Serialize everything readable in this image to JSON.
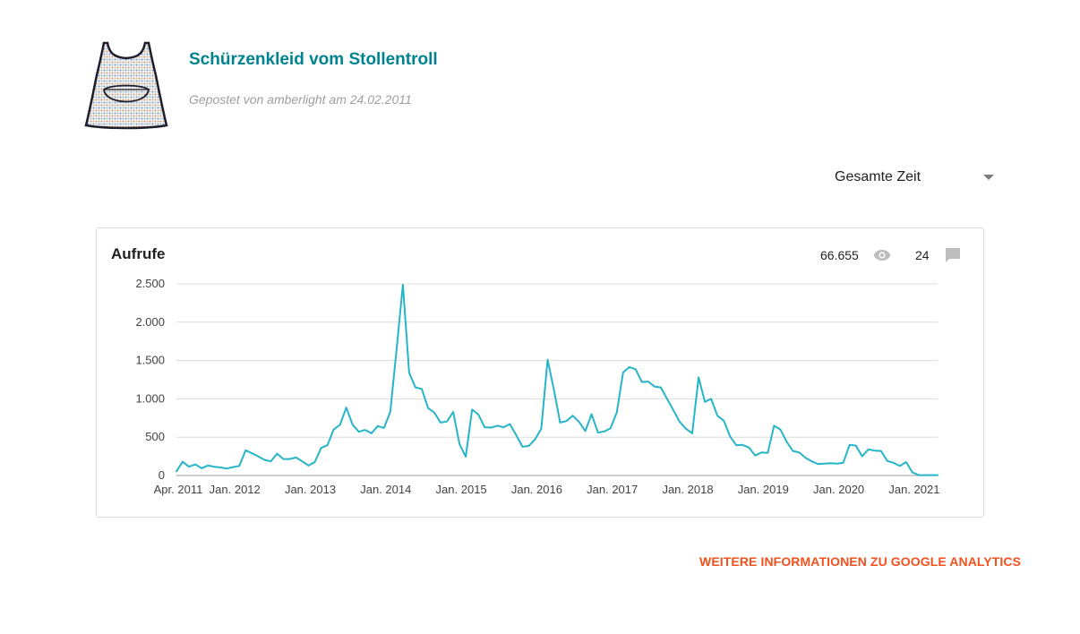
{
  "post": {
    "title": "Schürzenkleid vom Stollentroll",
    "meta": "Gepostet von amberlight am 24.02.2011",
    "thumbnail_icon": "apron-dress-thumbnail"
  },
  "range_select": {
    "selected": "Gesamte Zeit",
    "icon": "dropdown-caret-icon"
  },
  "card": {
    "title": "Aufrufe",
    "views_total": "66.655",
    "views_icon": "eye-icon",
    "comments_total": "24",
    "comments_icon": "comment-icon"
  },
  "chart_data": {
    "type": "line",
    "color": "#26b5c8",
    "ylim": [
      0,
      2500
    ],
    "yticks": [
      {
        "value": 2500,
        "label": "2.500"
      },
      {
        "value": 2000,
        "label": "2.000"
      },
      {
        "value": 1500,
        "label": "1.500"
      },
      {
        "value": 1000,
        "label": "1.000"
      },
      {
        "value": 500,
        "label": "500"
      },
      {
        "value": 0,
        "label": "0"
      }
    ],
    "xticks": [
      {
        "date": "2011-04",
        "label": "Apr. 2011"
      },
      {
        "date": "2012-01",
        "label": "Jan. 2012"
      },
      {
        "date": "2013-01",
        "label": "Jan. 2013"
      },
      {
        "date": "2014-01",
        "label": "Jan. 2014"
      },
      {
        "date": "2015-01",
        "label": "Jan. 2015"
      },
      {
        "date": "2016-01",
        "label": "Jan. 2016"
      },
      {
        "date": "2017-01",
        "label": "Jan. 2017"
      },
      {
        "date": "2018-01",
        "label": "Jan. 2018"
      },
      {
        "date": "2019-01",
        "label": "Jan. 2019"
      },
      {
        "date": "2020-01",
        "label": "Jan. 2020"
      },
      {
        "date": "2021-01",
        "label": "Jan. 2021"
      }
    ],
    "grid": true,
    "legend": "none",
    "points": [
      [
        "2011-04",
        55
      ],
      [
        "2011-05",
        180
      ],
      [
        "2011-06",
        115
      ],
      [
        "2011-07",
        145
      ],
      [
        "2011-08",
        95
      ],
      [
        "2011-09",
        130
      ],
      [
        "2011-10",
        115
      ],
      [
        "2011-11",
        105
      ],
      [
        "2011-12",
        90
      ],
      [
        "2012-01",
        110
      ],
      [
        "2012-02",
        125
      ],
      [
        "2012-03",
        330
      ],
      [
        "2012-04",
        290
      ],
      [
        "2012-05",
        250
      ],
      [
        "2012-06",
        205
      ],
      [
        "2012-07",
        185
      ],
      [
        "2012-08",
        285
      ],
      [
        "2012-09",
        215
      ],
      [
        "2012-10",
        215
      ],
      [
        "2012-11",
        235
      ],
      [
        "2012-12",
        185
      ],
      [
        "2013-01",
        130
      ],
      [
        "2013-02",
        175
      ],
      [
        "2013-03",
        360
      ],
      [
        "2013-04",
        395
      ],
      [
        "2013-05",
        600
      ],
      [
        "2013-06",
        660
      ],
      [
        "2013-07",
        885
      ],
      [
        "2013-08",
        665
      ],
      [
        "2013-09",
        570
      ],
      [
        "2013-10",
        595
      ],
      [
        "2013-11",
        550
      ],
      [
        "2013-12",
        645
      ],
      [
        "2014-01",
        620
      ],
      [
        "2014-02",
        830
      ],
      [
        "2014-03",
        1650
      ],
      [
        "2014-04",
        2490
      ],
      [
        "2014-05",
        1340
      ],
      [
        "2014-06",
        1150
      ],
      [
        "2014-07",
        1130
      ],
      [
        "2014-08",
        880
      ],
      [
        "2014-09",
        820
      ],
      [
        "2014-10",
        690
      ],
      [
        "2014-11",
        705
      ],
      [
        "2014-12",
        830
      ],
      [
        "2015-01",
        410
      ],
      [
        "2015-02",
        245
      ],
      [
        "2015-03",
        860
      ],
      [
        "2015-04",
        795
      ],
      [
        "2015-05",
        630
      ],
      [
        "2015-06",
        625
      ],
      [
        "2015-07",
        650
      ],
      [
        "2015-08",
        630
      ],
      [
        "2015-09",
        670
      ],
      [
        "2015-10",
        530
      ],
      [
        "2015-11",
        375
      ],
      [
        "2015-12",
        385
      ],
      [
        "2016-01",
        470
      ],
      [
        "2016-02",
        610
      ],
      [
        "2016-03",
        1510
      ],
      [
        "2016-04",
        1120
      ],
      [
        "2016-05",
        690
      ],
      [
        "2016-06",
        710
      ],
      [
        "2016-07",
        780
      ],
      [
        "2016-08",
        700
      ],
      [
        "2016-09",
        580
      ],
      [
        "2016-10",
        800
      ],
      [
        "2016-11",
        560
      ],
      [
        "2016-12",
        575
      ],
      [
        "2017-01",
        615
      ],
      [
        "2017-02",
        820
      ],
      [
        "2017-03",
        1345
      ],
      [
        "2017-04",
        1415
      ],
      [
        "2017-05",
        1385
      ],
      [
        "2017-06",
        1220
      ],
      [
        "2017-07",
        1225
      ],
      [
        "2017-08",
        1160
      ],
      [
        "2017-09",
        1150
      ],
      [
        "2017-10",
        1000
      ],
      [
        "2017-11",
        850
      ],
      [
        "2017-12",
        700
      ],
      [
        "2018-01",
        610
      ],
      [
        "2018-02",
        550
      ],
      [
        "2018-03",
        1280
      ],
      [
        "2018-04",
        960
      ],
      [
        "2018-05",
        1000
      ],
      [
        "2018-06",
        780
      ],
      [
        "2018-07",
        715
      ],
      [
        "2018-08",
        510
      ],
      [
        "2018-09",
        395
      ],
      [
        "2018-10",
        400
      ],
      [
        "2018-11",
        365
      ],
      [
        "2018-12",
        260
      ],
      [
        "2019-01",
        300
      ],
      [
        "2019-02",
        295
      ],
      [
        "2019-03",
        650
      ],
      [
        "2019-04",
        600
      ],
      [
        "2019-05",
        440
      ],
      [
        "2019-06",
        320
      ],
      [
        "2019-07",
        300
      ],
      [
        "2019-08",
        230
      ],
      [
        "2019-09",
        185
      ],
      [
        "2019-10",
        150
      ],
      [
        "2019-11",
        155
      ],
      [
        "2019-12",
        160
      ],
      [
        "2020-01",
        155
      ],
      [
        "2020-02",
        165
      ],
      [
        "2020-03",
        400
      ],
      [
        "2020-04",
        390
      ],
      [
        "2020-05",
        250
      ],
      [
        "2020-06",
        340
      ],
      [
        "2020-07",
        325
      ],
      [
        "2020-08",
        320
      ],
      [
        "2020-09",
        190
      ],
      [
        "2020-10",
        165
      ],
      [
        "2020-11",
        125
      ],
      [
        "2020-12",
        175
      ],
      [
        "2021-01",
        40
      ],
      [
        "2021-02",
        5
      ],
      [
        "2021-03",
        5
      ],
      [
        "2021-04",
        5
      ],
      [
        "2021-05",
        5
      ]
    ]
  },
  "footer": {
    "more_link": "WEITERE INFORMATIONEN ZU GOOGLE ANALYTICS"
  }
}
